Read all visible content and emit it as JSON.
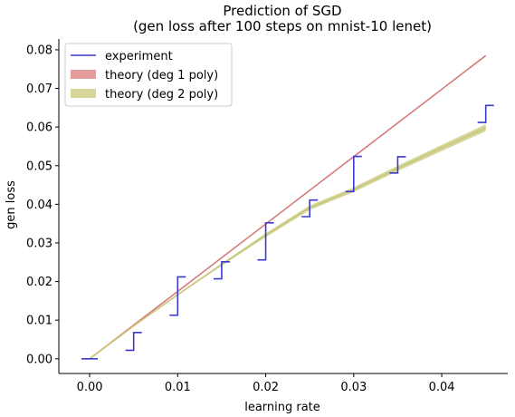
{
  "chart_data": {
    "type": "line",
    "title": "Prediction of SGD",
    "subtitle": "(gen loss after 100 steps on mnist-10 lenet)",
    "xlabel": "learning rate",
    "ylabel": "gen loss",
    "xlim": [
      -0.0035,
      0.0475
    ],
    "ylim": [
      -0.0038,
      0.0828
    ],
    "x_ticks": [
      0.0,
      0.01,
      0.02,
      0.03,
      0.04
    ],
    "x_tick_labels": [
      "0.00",
      "0.01",
      "0.02",
      "0.03",
      "0.04"
    ],
    "y_ticks": [
      0.0,
      0.01,
      0.02,
      0.03,
      0.04,
      0.05,
      0.06,
      0.07,
      0.08
    ],
    "y_tick_labels": [
      "0.00",
      "0.01",
      "0.02",
      "0.03",
      "0.04",
      "0.05",
      "0.06",
      "0.07",
      "0.08"
    ],
    "grid": false,
    "legend_position": "upper-left",
    "series": [
      {
        "name": "experiment",
        "kind": "error-bars",
        "color": "#3a3acd",
        "points": [
          {
            "x": 0.0,
            "low": 0.0,
            "high": 0.0
          },
          {
            "x": 0.005,
            "low": 0.0022,
            "high": 0.0068
          },
          {
            "x": 0.01,
            "low": 0.0113,
            "high": 0.0212
          },
          {
            "x": 0.015,
            "low": 0.0207,
            "high": 0.0251
          },
          {
            "x": 0.02,
            "low": 0.0256,
            "high": 0.0352
          },
          {
            "x": 0.025,
            "low": 0.0368,
            "high": 0.0411
          },
          {
            "x": 0.03,
            "low": 0.0433,
            "high": 0.0524
          },
          {
            "x": 0.035,
            "low": 0.0481,
            "high": 0.0523
          },
          {
            "x": 0.045,
            "low": 0.0612,
            "high": 0.0656
          }
        ]
      },
      {
        "name": "theory (deg 1 poly)",
        "kind": "band",
        "color": "#d97c7c",
        "x": [
          0.0,
          0.045
        ],
        "center": [
          0.0,
          0.0785
        ],
        "low": [
          0.0,
          0.0783
        ],
        "high": [
          0.0,
          0.0787
        ]
      },
      {
        "name": "theory (deg 2 poly)",
        "kind": "band",
        "color": "#c8c87a",
        "x": [
          0.0,
          0.005,
          0.01,
          0.015,
          0.02,
          0.025,
          0.03,
          0.035,
          0.04,
          0.045
        ],
        "center": [
          0.0,
          0.0085,
          0.0166,
          0.0244,
          0.032,
          0.0391,
          0.0438,
          0.0493,
          0.0546,
          0.0598
        ],
        "low": [
          0.0,
          0.0084,
          0.0164,
          0.0241,
          0.0315,
          0.0385,
          0.0432,
          0.0486,
          0.0538,
          0.0589
        ],
        "high": [
          0.0,
          0.0086,
          0.0168,
          0.0247,
          0.0325,
          0.0397,
          0.0444,
          0.05,
          0.0554,
          0.0607
        ]
      }
    ]
  }
}
